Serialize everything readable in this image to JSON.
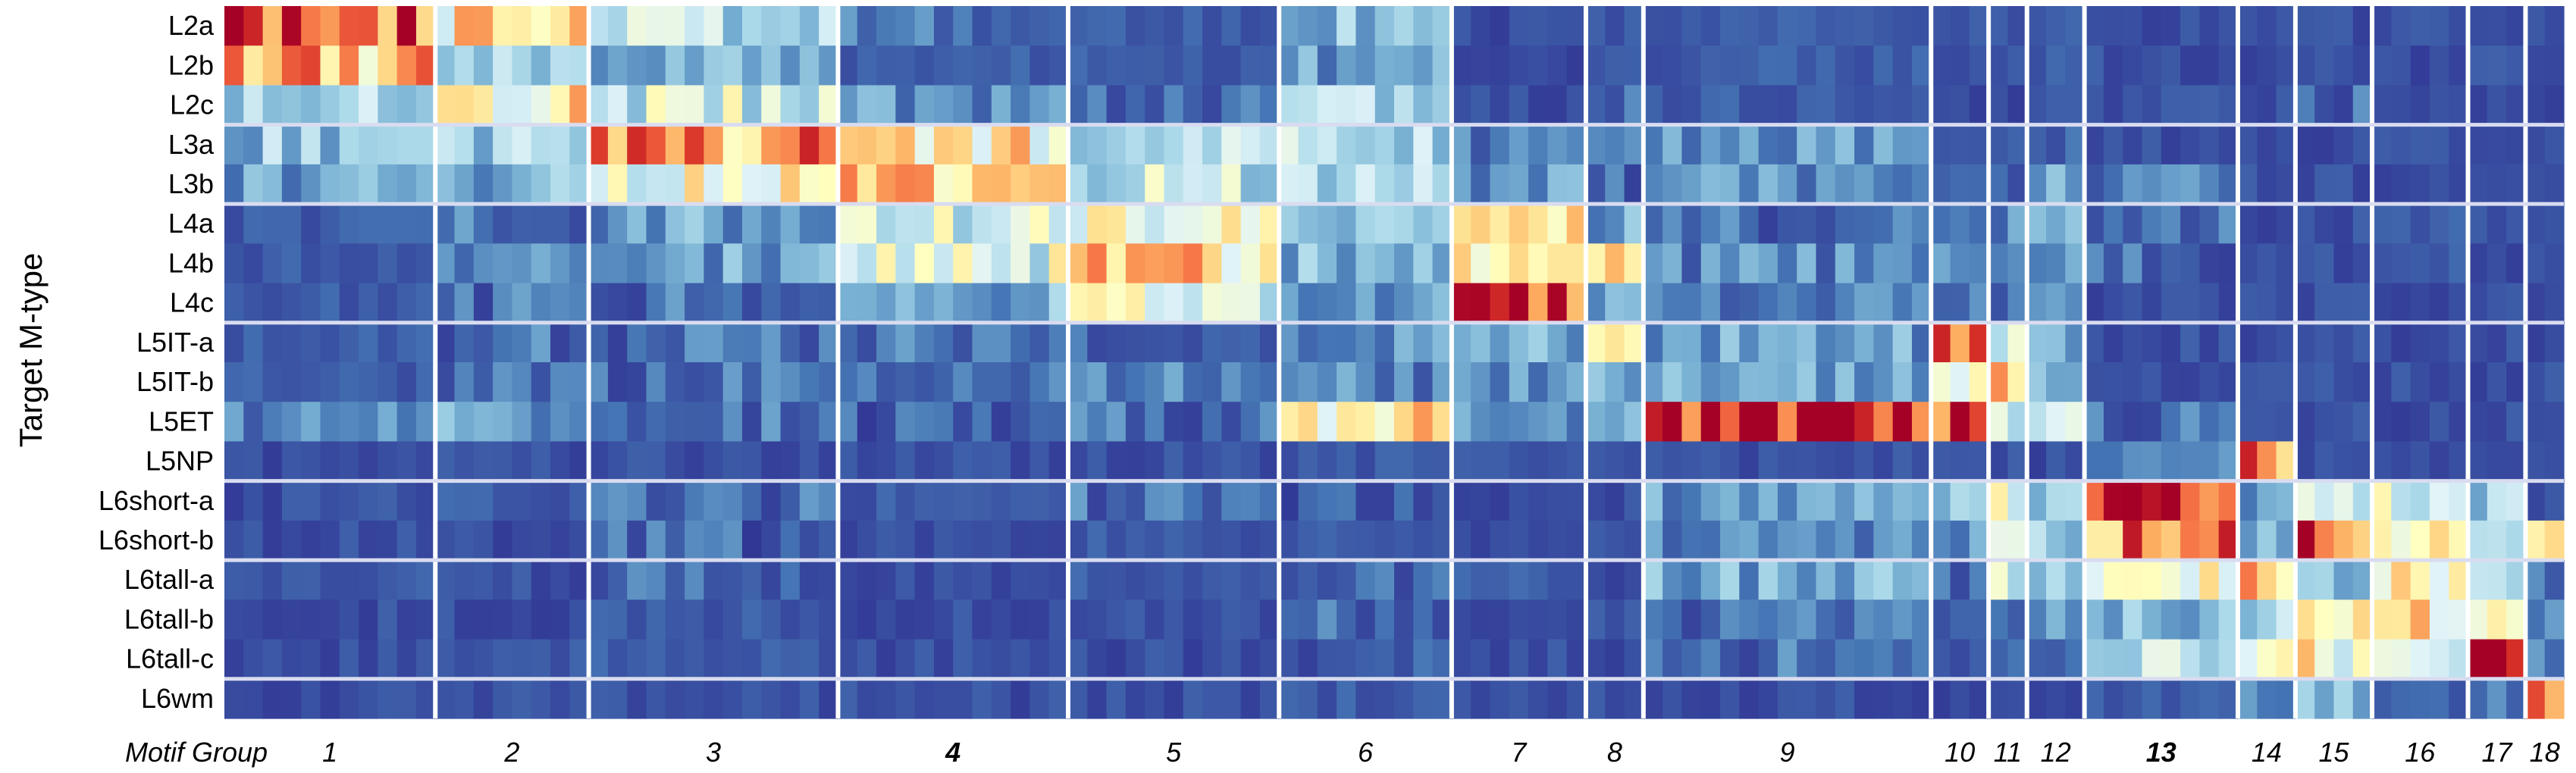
{
  "chart_data": {
    "type": "heatmap",
    "ylabel": "Target M-type",
    "xlabel": "Motif Group",
    "rows": [
      "L2a",
      "L2b",
      "L2c",
      "L3a",
      "L3b",
      "L4a",
      "L4b",
      "L4c",
      "L5IT-a",
      "L5IT-b",
      "L5ET",
      "L5NP",
      "L6short-a",
      "L6short-b",
      "L6tall-a",
      "L6tall-b",
      "L6tall-c",
      "L6wm"
    ],
    "groups": [
      {
        "label": "1",
        "columns": 11
      },
      {
        "label": "2",
        "columns": 8
      },
      {
        "label": "3",
        "columns": 13
      },
      {
        "label": "4",
        "columns": 12,
        "bold": true
      },
      {
        "label": "5",
        "columns": 11
      },
      {
        "label": "6",
        "columns": 9
      },
      {
        "label": "7",
        "columns": 7
      },
      {
        "label": "8",
        "columns": 3
      },
      {
        "label": "9",
        "columns": 15
      },
      {
        "label": "10",
        "columns": 3
      },
      {
        "label": "11",
        "columns": 2
      },
      {
        "label": "12",
        "columns": 3
      },
      {
        "label": "13",
        "columns": 8,
        "bold": true
      },
      {
        "label": "14",
        "columns": 3
      },
      {
        "label": "15",
        "columns": 4
      },
      {
        "label": "16",
        "columns": 5
      },
      {
        "label": "17",
        "columns": 3
      },
      {
        "label": "18",
        "columns": 2
      }
    ],
    "row_separators_after": [
      "L2c",
      "L3b",
      "L4c",
      "L5NP",
      "L6short-b",
      "L6tall-c"
    ],
    "value_scale": "relative enrichment 0 (dark blue) to 1 (dark red)",
    "colorscale": [
      "#313695",
      "#4575b4",
      "#74add1",
      "#abd9e9",
      "#e0f3f8",
      "#ffffbf",
      "#fee090",
      "#fdae61",
      "#f46d43",
      "#d73027",
      "#a50026"
    ],
    "group_profiles": {
      "1": [
        0.85,
        0.65,
        0.3,
        0.25,
        0.18,
        0.06,
        0.06,
        0.06,
        0.06,
        0.06,
        0.12,
        0.04,
        0.04,
        0.04,
        0.06,
        0.04,
        0.04,
        0.04
      ],
      "2": [
        0.55,
        0.28,
        0.55,
        0.3,
        0.22,
        0.12,
        0.15,
        0.1,
        0.1,
        0.1,
        0.18,
        0.04,
        0.06,
        0.04,
        0.04,
        0.04,
        0.06,
        0.04
      ],
      "3": [
        0.32,
        0.2,
        0.38,
        0.72,
        0.48,
        0.18,
        0.18,
        0.1,
        0.1,
        0.1,
        0.1,
        0.04,
        0.1,
        0.08,
        0.08,
        0.06,
        0.06,
        0.04
      ],
      "4": [
        0.1,
        0.06,
        0.16,
        0.55,
        0.62,
        0.38,
        0.42,
        0.2,
        0.1,
        0.08,
        0.08,
        0.04,
        0.06,
        0.04,
        0.04,
        0.04,
        0.04,
        0.04
      ],
      "5": [
        0.06,
        0.06,
        0.1,
        0.3,
        0.36,
        0.52,
        0.6,
        0.42,
        0.1,
        0.12,
        0.1,
        0.04,
        0.1,
        0.06,
        0.06,
        0.04,
        0.04,
        0.04
      ],
      "6": [
        0.25,
        0.18,
        0.28,
        0.3,
        0.3,
        0.22,
        0.22,
        0.16,
        0.16,
        0.14,
        0.55,
        0.06,
        0.08,
        0.06,
        0.1,
        0.08,
        0.08,
        0.06
      ],
      "7": [
        0.04,
        0.04,
        0.04,
        0.12,
        0.16,
        0.5,
        0.62,
        0.85,
        0.2,
        0.16,
        0.14,
        0.04,
        0.04,
        0.04,
        0.06,
        0.04,
        0.04,
        0.04
      ],
      "8": [
        0.06,
        0.06,
        0.1,
        0.14,
        0.1,
        0.18,
        0.55,
        0.2,
        0.75,
        0.22,
        0.2,
        0.04,
        0.04,
        0.04,
        0.04,
        0.04,
        0.04,
        0.04
      ],
      "9": [
        0.06,
        0.06,
        0.06,
        0.18,
        0.14,
        0.1,
        0.14,
        0.1,
        0.18,
        0.18,
        0.96,
        0.04,
        0.16,
        0.12,
        0.2,
        0.1,
        0.1,
        0.04
      ],
      "10": [
        0.04,
        0.04,
        0.04,
        0.06,
        0.06,
        0.1,
        0.14,
        0.1,
        0.82,
        0.4,
        0.78,
        0.04,
        0.28,
        0.14,
        0.1,
        0.06,
        0.06,
        0.04
      ],
      "11": [
        0.04,
        0.04,
        0.04,
        0.06,
        0.06,
        0.14,
        0.16,
        0.1,
        0.45,
        0.65,
        0.4,
        0.04,
        0.45,
        0.3,
        0.4,
        0.1,
        0.1,
        0.04
      ],
      "12": [
        0.06,
        0.06,
        0.06,
        0.12,
        0.2,
        0.2,
        0.22,
        0.16,
        0.18,
        0.22,
        0.5,
        0.04,
        0.3,
        0.3,
        0.22,
        0.14,
        0.14,
        0.04
      ],
      "13": [
        0.04,
        0.04,
        0.04,
        0.04,
        0.12,
        0.1,
        0.08,
        0.04,
        0.04,
        0.04,
        0.1,
        0.12,
        0.85,
        0.72,
        0.45,
        0.2,
        0.3,
        0.06
      ],
      "14": [
        0.04,
        0.04,
        0.04,
        0.04,
        0.04,
        0.04,
        0.04,
        0.04,
        0.04,
        0.04,
        0.04,
        0.8,
        0.2,
        0.18,
        0.6,
        0.3,
        0.55,
        0.1
      ],
      "15": [
        0.04,
        0.04,
        0.08,
        0.04,
        0.04,
        0.04,
        0.04,
        0.04,
        0.04,
        0.04,
        0.04,
        0.04,
        0.35,
        0.88,
        0.3,
        0.45,
        0.5,
        0.25
      ],
      "16": [
        0.04,
        0.04,
        0.04,
        0.04,
        0.04,
        0.06,
        0.06,
        0.04,
        0.04,
        0.04,
        0.04,
        0.04,
        0.4,
        0.45,
        0.6,
        0.55,
        0.45,
        0.06
      ],
      "17": [
        0.04,
        0.04,
        0.04,
        0.04,
        0.04,
        0.04,
        0.04,
        0.04,
        0.04,
        0.04,
        0.04,
        0.04,
        0.28,
        0.3,
        0.25,
        0.4,
        0.92,
        0.1
      ],
      "18": [
        0.04,
        0.04,
        0.04,
        0.04,
        0.04,
        0.04,
        0.04,
        0.04,
        0.04,
        0.04,
        0.04,
        0.04,
        0.04,
        0.45,
        0.1,
        0.1,
        0.1,
        0.92
      ]
    }
  }
}
